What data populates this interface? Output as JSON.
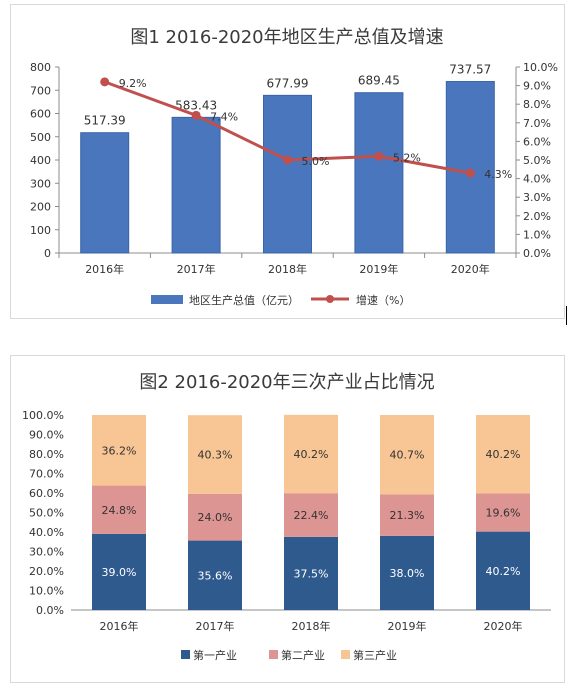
{
  "chart_data": [
    {
      "type": "bar",
      "title": "图1  2016-2020年地区生产总值及增速",
      "categories": [
        "2016年",
        "2017年",
        "2018年",
        "2019年",
        "2020年"
      ],
      "series": [
        {
          "name": "地区生产总值（亿元）",
          "type": "bar",
          "axis": "left",
          "values": [
            517.39,
            583.43,
            677.99,
            689.45,
            737.57
          ],
          "labels": [
            "517.39",
            "583.43",
            "677.99",
            "689.45",
            "737.57"
          ],
          "color": "#4a76bd"
        },
        {
          "name": "增速（%）",
          "type": "line",
          "axis": "right",
          "values": [
            9.2,
            7.4,
            5.0,
            5.2,
            4.3
          ],
          "labels": [
            "9.2%",
            "7.4%",
            "5.0%",
            "5.2%",
            "4.3%"
          ],
          "color": "#c0504d"
        }
      ],
      "ylim": [
        0,
        800
      ],
      "y_ticks": [
        "0",
        "100",
        "200",
        "300",
        "400",
        "500",
        "600",
        "700",
        "800"
      ],
      "y2lim": [
        0,
        10
      ],
      "y2_ticks": [
        "0.0%",
        "1.0%",
        "2.0%",
        "3.0%",
        "4.0%",
        "5.0%",
        "6.0%",
        "7.0%",
        "8.0%",
        "9.0%",
        "10.0%"
      ],
      "legend": "bottom",
      "grid": false
    },
    {
      "type": "bar",
      "stacked": true,
      "title": "图2  2016-2020年三次产业占比情况",
      "categories": [
        "2016年",
        "2017年",
        "2018年",
        "2019年",
        "2020年"
      ],
      "series": [
        {
          "name": "第一产业",
          "values": [
            39.0,
            35.6,
            37.5,
            38.0,
            40.2
          ],
          "labels": [
            "39.0%",
            "35.6%",
            "37.5%",
            "38.0%",
            "40.2%"
          ],
          "color": "#2f5a8e"
        },
        {
          "name": "第二产业",
          "values": [
            24.8,
            24.0,
            22.4,
            21.3,
            19.6
          ],
          "labels": [
            "24.8%",
            "24.0%",
            "22.4%",
            "21.3%",
            "19.6%"
          ],
          "color": "#dc9593"
        },
        {
          "name": "第三产业",
          "values": [
            36.2,
            40.3,
            40.2,
            40.7,
            40.2
          ],
          "labels": [
            "36.2%",
            "40.3%",
            "40.2%",
            "40.7%",
            "40.2%"
          ],
          "color": "#f8c594"
        }
      ],
      "ylim": [
        0,
        100
      ],
      "y_ticks": [
        "0.0%",
        "10.0%",
        "20.0%",
        "30.0%",
        "40.0%",
        "50.0%",
        "60.0%",
        "70.0%",
        "80.0%",
        "90.0%",
        "100.0%"
      ],
      "legend": "bottom",
      "grid": false
    }
  ]
}
